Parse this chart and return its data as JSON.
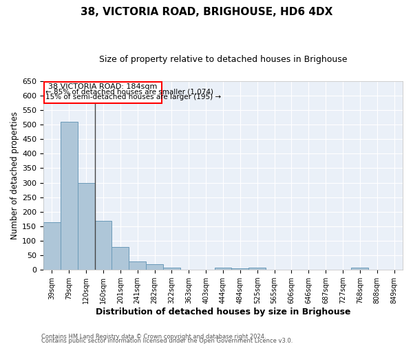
{
  "title1": "38, VICTORIA ROAD, BRIGHOUSE, HD6 4DX",
  "title2": "Size of property relative to detached houses in Brighouse",
  "xlabel": "Distribution of detached houses by size in Brighouse",
  "ylabel": "Number of detached properties",
  "categories": [
    "39sqm",
    "79sqm",
    "120sqm",
    "160sqm",
    "201sqm",
    "241sqm",
    "282sqm",
    "322sqm",
    "363sqm",
    "403sqm",
    "444sqm",
    "484sqm",
    "525sqm",
    "565sqm",
    "606sqm",
    "646sqm",
    "687sqm",
    "727sqm",
    "768sqm",
    "808sqm",
    "849sqm"
  ],
  "values": [
    165,
    510,
    300,
    168,
    78,
    30,
    20,
    8,
    0,
    0,
    8,
    5,
    8,
    0,
    0,
    0,
    0,
    0,
    8,
    0,
    0
  ],
  "bar_color": "#aec6d8",
  "bar_edge_color": "#6a9ab8",
  "background_color": "#eaf0f8",
  "grid_color": "#ffffff",
  "ylim": [
    0,
    650
  ],
  "yticks": [
    0,
    50,
    100,
    150,
    200,
    250,
    300,
    350,
    400,
    450,
    500,
    550,
    600,
    650
  ],
  "annotation_line1": "38 VICTORIA ROAD: 184sqm",
  "annotation_line2": "← 85% of detached houses are smaller (1,074)",
  "annotation_line3": "15% of semi-detached houses are larger (195) →",
  "footer_line1": "Contains HM Land Registry data © Crown copyright and database right 2024.",
  "footer_line2": "Contains public sector information licensed under the Open Government Licence v3.0.",
  "vline_index": 2
}
